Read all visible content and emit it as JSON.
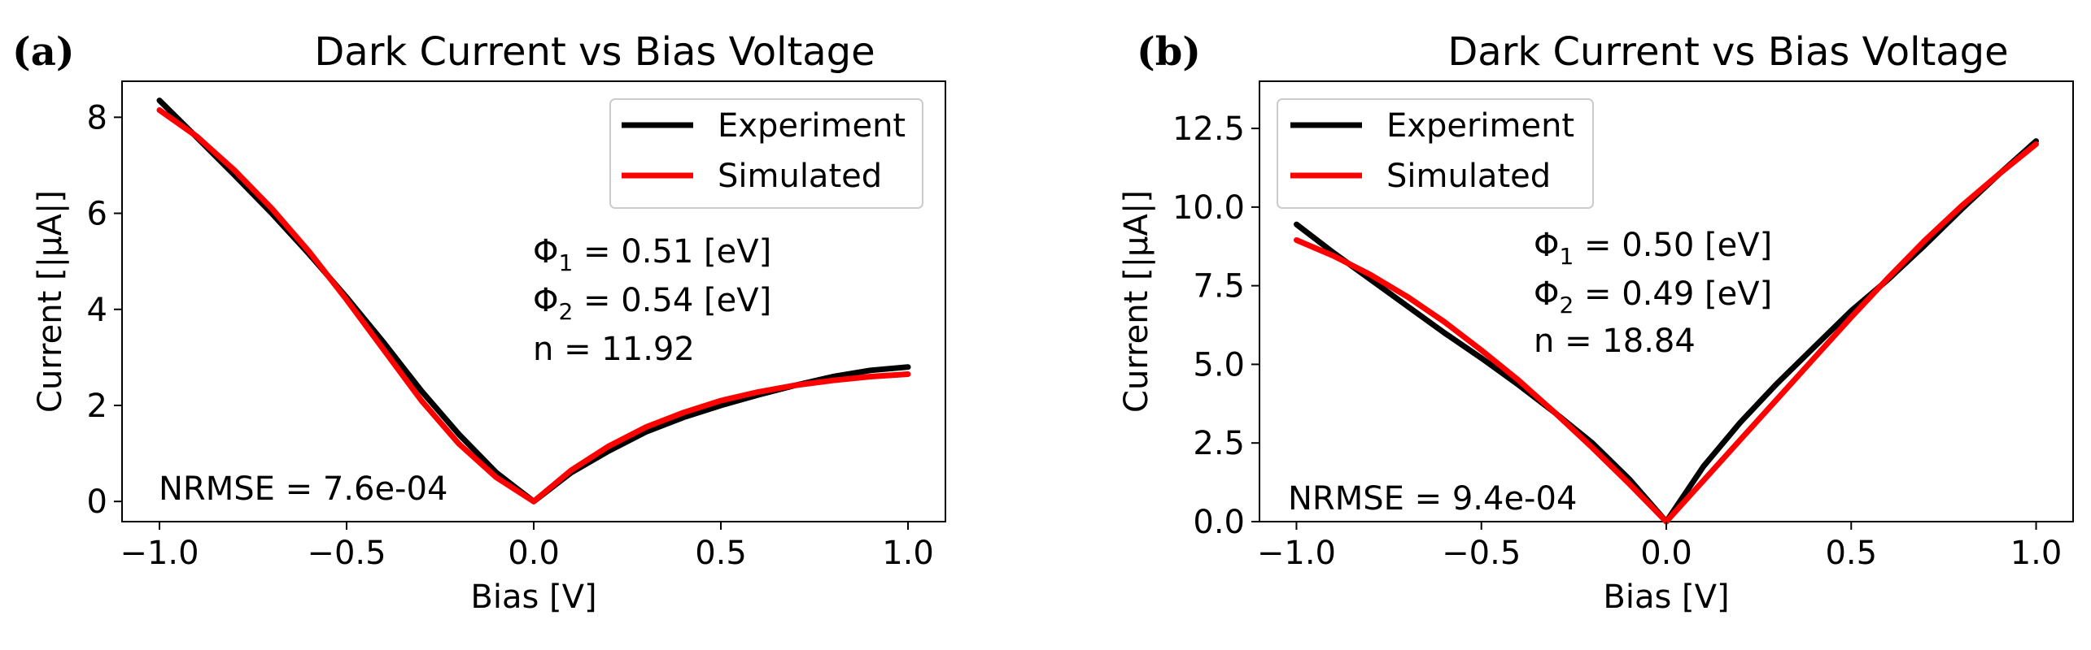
{
  "chart_data": [
    {
      "type": "line",
      "panel_label": "(a)",
      "title": "Dark Current vs Bias Voltage",
      "xlabel": "Bias [V]",
      "ylabel": "Current [|μA|]",
      "xlim": [
        -1.1,
        1.1
      ],
      "ylim": [
        -0.42,
        8.75
      ],
      "xticks": [
        -1.0,
        -0.5,
        0.0,
        0.5,
        1.0
      ],
      "xtick_labels": [
        "−1.0",
        "−0.5",
        "0.0",
        "0.5",
        "1.0"
      ],
      "yticks": [
        0,
        2,
        4,
        6,
        8
      ],
      "ytick_labels": [
        "0",
        "2",
        "4",
        "6",
        "8"
      ],
      "legend_position": "top-right",
      "series": [
        {
          "name": "Experiment",
          "color": "#000000",
          "x": [
            -1.0,
            -0.9,
            -0.8,
            -0.7,
            -0.6,
            -0.5,
            -0.4,
            -0.3,
            -0.2,
            -0.1,
            0.0,
            0.1,
            0.2,
            0.3,
            0.4,
            0.5,
            0.6,
            0.7,
            0.8,
            0.9,
            1.0
          ],
          "y": [
            8.35,
            7.58,
            6.8,
            6.0,
            5.15,
            4.25,
            3.3,
            2.3,
            1.4,
            0.6,
            0.0,
            0.6,
            1.05,
            1.45,
            1.75,
            2.0,
            2.22,
            2.42,
            2.6,
            2.73,
            2.8
          ]
        },
        {
          "name": "Simulated",
          "color": "#ff0000",
          "x": [
            -1.0,
            -0.9,
            -0.8,
            -0.7,
            -0.6,
            -0.5,
            -0.4,
            -0.3,
            -0.2,
            -0.1,
            0.0,
            0.1,
            0.2,
            0.3,
            0.4,
            0.5,
            0.6,
            0.7,
            0.8,
            0.9,
            1.0
          ],
          "y": [
            8.15,
            7.6,
            6.9,
            6.1,
            5.2,
            4.2,
            3.15,
            2.1,
            1.2,
            0.5,
            0.0,
            0.65,
            1.15,
            1.55,
            1.85,
            2.1,
            2.28,
            2.42,
            2.52,
            2.6,
            2.65
          ]
        }
      ],
      "annotations": [
        {
          "sym": "Φ",
          "sub": "1",
          "rest": " = 0.51 [eV]"
        },
        {
          "sym": "Φ",
          "sub": "2",
          "rest": " = 0.54 [eV]"
        },
        {
          "text": "n = 11.92"
        },
        {
          "text": "NRMSE = 7.6e-04"
        }
      ]
    },
    {
      "type": "line",
      "panel_label": "(b)",
      "title": "Dark Current vs Bias Voltage",
      "xlabel": "Bias [V]",
      "ylabel": "Current [|μA|]",
      "xlim": [
        -1.1,
        1.1
      ],
      "ylim": [
        0.0,
        14.0
      ],
      "xticks": [
        -1.0,
        -0.5,
        0.0,
        0.5,
        1.0
      ],
      "xtick_labels": [
        "−1.0",
        "−0.5",
        "0.0",
        "0.5",
        "1.0"
      ],
      "yticks": [
        0.0,
        2.5,
        5.0,
        7.5,
        10.0,
        12.5
      ],
      "ytick_labels": [
        "0.0",
        "2.5",
        "5.0",
        "7.5",
        "10.0",
        "12.5"
      ],
      "legend_position": "top-left",
      "series": [
        {
          "name": "Experiment",
          "color": "#000000",
          "x": [
            -1.0,
            -0.9,
            -0.8,
            -0.7,
            -0.6,
            -0.5,
            -0.4,
            -0.3,
            -0.2,
            -0.1,
            0.0,
            0.1,
            0.2,
            0.3,
            0.4,
            0.5,
            0.6,
            0.7,
            0.8,
            0.9,
            1.0
          ],
          "y": [
            9.45,
            8.55,
            7.7,
            6.85,
            6.0,
            5.2,
            4.35,
            3.45,
            2.5,
            1.35,
            0.0,
            1.75,
            3.15,
            4.4,
            5.55,
            6.7,
            7.7,
            8.8,
            9.95,
            11.05,
            12.1
          ]
        },
        {
          "name": "Simulated",
          "color": "#ff0000",
          "x": [
            -1.0,
            -0.9,
            -0.8,
            -0.7,
            -0.6,
            -0.5,
            -0.4,
            -0.3,
            -0.2,
            -0.1,
            0.0,
            0.1,
            0.2,
            0.3,
            0.4,
            0.5,
            0.6,
            0.7,
            0.8,
            0.9,
            1.0
          ],
          "y": [
            8.95,
            8.45,
            7.85,
            7.15,
            6.35,
            5.45,
            4.5,
            3.45,
            2.35,
            1.2,
            0.0,
            1.3,
            2.6,
            3.9,
            5.2,
            6.5,
            7.75,
            8.95,
            10.05,
            11.05,
            12.0
          ]
        }
      ],
      "annotations": [
        {
          "sym": "Φ",
          "sub": "1",
          "rest": " = 0.50 [eV]"
        },
        {
          "sym": "Φ",
          "sub": "2",
          "rest": " = 0.49 [eV]"
        },
        {
          "text": "n = 18.84"
        },
        {
          "text": "NRMSE = 9.4e-04"
        }
      ]
    }
  ]
}
